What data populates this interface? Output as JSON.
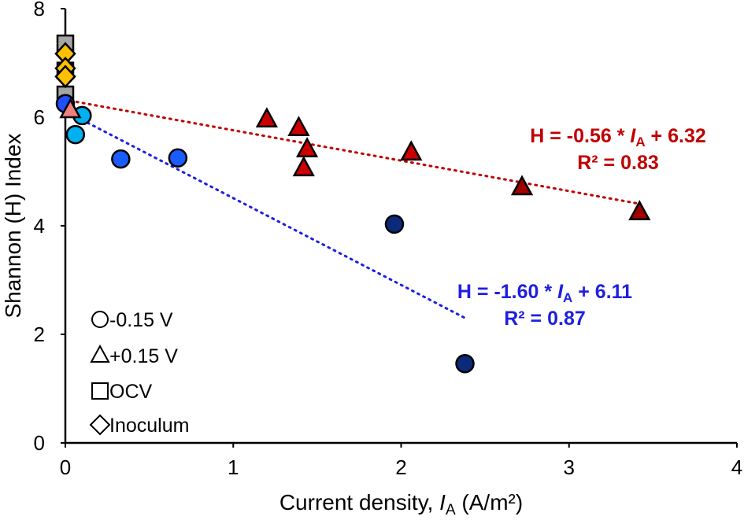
{
  "chart_data": {
    "type": "scatter",
    "xlabel_prefix": "Current density, ",
    "xlabel_var": "I",
    "xlabel_sub": "A",
    "xlabel_suffix": " (A/m²)",
    "ylabel": "Shannon (H) Index",
    "xlim": [
      0,
      4
    ],
    "ylim": [
      0,
      8
    ],
    "xticks": [
      "0",
      "1",
      "2",
      "3",
      "4"
    ],
    "yticks": [
      "0",
      "2",
      "4",
      "6",
      "8"
    ],
    "series": [
      {
        "name": "-0.15 V",
        "marker": "circle",
        "points": [
          {
            "x": 0.0,
            "y": 6.25,
            "color": "#1f4fff"
          },
          {
            "x": 0.1,
            "y": 6.03,
            "color": "#00b0f0"
          },
          {
            "x": 0.06,
            "y": 5.68,
            "color": "#00b0f0"
          },
          {
            "x": 0.33,
            "y": 5.23,
            "color": "#1a5cff"
          },
          {
            "x": 0.67,
            "y": 5.25,
            "color": "#1a5cff"
          },
          {
            "x": 1.96,
            "y": 4.03,
            "color": "#0b2a7a"
          },
          {
            "x": 2.38,
            "y": 1.46,
            "color": "#0b2a7a"
          }
        ]
      },
      {
        "name": "+0.15 V",
        "marker": "triangle",
        "points": [
          {
            "x": 0.03,
            "y": 6.13,
            "color": "#f08080"
          },
          {
            "x": 1.2,
            "y": 5.96,
            "color": "#cc0000"
          },
          {
            "x": 1.39,
            "y": 5.8,
            "color": "#cc0000"
          },
          {
            "x": 1.44,
            "y": 5.41,
            "color": "#cc0000"
          },
          {
            "x": 1.42,
            "y": 5.06,
            "color": "#cc0000"
          },
          {
            "x": 2.06,
            "y": 5.35,
            "color": "#cc0000"
          },
          {
            "x": 2.72,
            "y": 4.71,
            "color": "#a00000"
          },
          {
            "x": 3.42,
            "y": 4.25,
            "color": "#a00000"
          }
        ]
      },
      {
        "name": "OCV",
        "marker": "square",
        "points": [
          {
            "x": 0,
            "y": 7.36,
            "color": "#a6a6a6"
          },
          {
            "x": 0,
            "y": 6.86,
            "color": "#a6a6a6"
          },
          {
            "x": 0,
            "y": 6.42,
            "color": "#a6a6a6"
          }
        ]
      },
      {
        "name": "Inoculum",
        "marker": "diamond",
        "points": [
          {
            "x": 0,
            "y": 7.17,
            "color": "#ffc000"
          },
          {
            "x": 0,
            "y": 6.9,
            "color": "#ffc000"
          },
          {
            "x": 0,
            "y": 6.75,
            "color": "#ffc000"
          }
        ]
      }
    ],
    "trendlines": [
      {
        "slope": -0.56,
        "intercept": 6.32,
        "x_range": [
          0.03,
          3.42
        ],
        "color": "#c00000",
        "eq_prefix": "H = -0.56 * ",
        "eq_suffix": " + 6.32",
        "r2": "R² = 0.83"
      },
      {
        "slope": -1.6,
        "intercept": 6.11,
        "x_range": [
          0,
          2.38
        ],
        "color": "#1f1fe0",
        "eq_prefix": "H = -1.60 * ",
        "eq_suffix": " + 6.11",
        "r2": "R² = 0.87"
      }
    ],
    "legend_position": "bottom-left"
  }
}
